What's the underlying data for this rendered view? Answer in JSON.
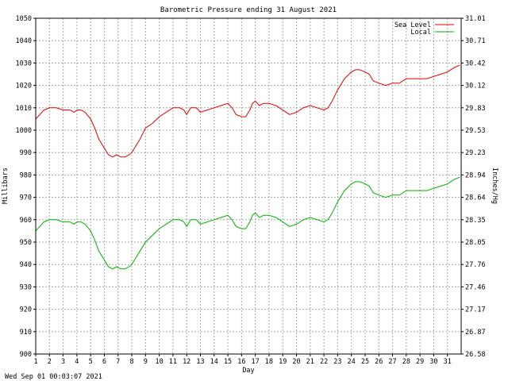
{
  "chart_data": {
    "type": "line",
    "title": "Barometric Pressure ending 31 August 2021",
    "xlabel": "Day",
    "ylabel": "Millibars",
    "y2label": "Inches/Hg",
    "timestamp": "Wed Sep 01 00:03:07 2021",
    "xlim": [
      1,
      32
    ],
    "ylim": [
      900,
      1050
    ],
    "y2lim": [
      26.58,
      31.01
    ],
    "x_ticks": [
      "1",
      "2",
      "3",
      "4",
      "5",
      "6",
      "7",
      "8",
      "9",
      "10",
      "11",
      "12",
      "13",
      "14",
      "15",
      "16",
      "17",
      "18",
      "19",
      "20",
      "21",
      "22",
      "23",
      "24",
      "25",
      "26",
      "27",
      "28",
      "29",
      "30",
      "31"
    ],
    "y_ticks": [
      "900",
      "910",
      "920",
      "930",
      "940",
      "950",
      "960",
      "970",
      "980",
      "990",
      "1000",
      "1010",
      "1020",
      "1030",
      "1040",
      "1050"
    ],
    "y2_ticks": [
      "26.58",
      "26.87",
      "27.17",
      "27.46",
      "27.76",
      "28.05",
      "28.35",
      "28.64",
      "28.94",
      "29.23",
      "29.53",
      "29.83",
      "30.12",
      "30.42",
      "30.71",
      "31.01"
    ],
    "grid": true,
    "legend_position": "top-right",
    "series": [
      {
        "name": "Sea Level",
        "color": "#e00000",
        "x": [
          1,
          1.3,
          1.6,
          2,
          2.5,
          3,
          3.5,
          3.8,
          4,
          4.3,
          4.6,
          5,
          5.3,
          5.6,
          6,
          6.3,
          6.6,
          6.9,
          7.2,
          7.5,
          7.8,
          8,
          8.3,
          8.6,
          9,
          9.5,
          10,
          10.5,
          11,
          11.5,
          11.8,
          12,
          12.3,
          12.7,
          13,
          13.5,
          14,
          14.5,
          15,
          15.3,
          15.6,
          16,
          16.3,
          16.6,
          16.8,
          17,
          17.3,
          17.6,
          18,
          18.5,
          19,
          19.5,
          20,
          20.5,
          21,
          21.5,
          22,
          22.3,
          22.6,
          23,
          23.5,
          24,
          24.3,
          24.6,
          25,
          25.3,
          25.6,
          26,
          26.5,
          27,
          27.5,
          28,
          28.5,
          29,
          29.5,
          30,
          30.5,
          31,
          31.5,
          31.9
        ],
        "values": [
          1005,
          1007,
          1009,
          1010,
          1010,
          1009,
          1009,
          1008,
          1009,
          1009,
          1008,
          1005,
          1001,
          996,
          992,
          989,
          988,
          989,
          988,
          988,
          989,
          990,
          993,
          996,
          1001,
          1003,
          1006,
          1008,
          1010,
          1010,
          1009,
          1007,
          1010,
          1010,
          1008,
          1009,
          1010,
          1011,
          1012,
          1010,
          1007,
          1006,
          1006,
          1009,
          1012,
          1013,
          1011,
          1012,
          1012,
          1011,
          1009,
          1007,
          1008,
          1010,
          1011,
          1010,
          1009,
          1010,
          1013,
          1018,
          1023,
          1026,
          1027,
          1027,
          1026,
          1025,
          1022,
          1021,
          1020,
          1021,
          1021,
          1023,
          1023,
          1023,
          1023,
          1024,
          1025,
          1026,
          1028,
          1029
        ]
      },
      {
        "name": "Local",
        "color": "#00b000",
        "x": [
          1,
          1.3,
          1.6,
          2,
          2.5,
          3,
          3.5,
          3.8,
          4,
          4.3,
          4.6,
          5,
          5.3,
          5.6,
          6,
          6.3,
          6.6,
          6.9,
          7.2,
          7.5,
          7.8,
          8,
          8.3,
          8.6,
          9,
          9.5,
          10,
          10.5,
          11,
          11.5,
          11.8,
          12,
          12.3,
          12.7,
          13,
          13.5,
          14,
          14.5,
          15,
          15.3,
          15.6,
          16,
          16.3,
          16.6,
          16.8,
          17,
          17.3,
          17.6,
          18,
          18.5,
          19,
          19.5,
          20,
          20.5,
          21,
          21.5,
          22,
          22.3,
          22.6,
          23,
          23.5,
          24,
          24.3,
          24.6,
          25,
          25.3,
          25.6,
          26,
          26.5,
          27,
          27.5,
          28,
          28.5,
          29,
          29.5,
          30,
          30.5,
          31,
          31.5,
          31.9
        ],
        "values": [
          955,
          957,
          959,
          960,
          960,
          959,
          959,
          958,
          959,
          959,
          958,
          955,
          951,
          946,
          942,
          939,
          938,
          939,
          938,
          938,
          939,
          940,
          943,
          946,
          950,
          953,
          956,
          958,
          960,
          960,
          959,
          957,
          960,
          960,
          958,
          959,
          960,
          961,
          962,
          960,
          957,
          956,
          956,
          959,
          962,
          963,
          961,
          962,
          962,
          961,
          959,
          957,
          958,
          960,
          961,
          960,
          959,
          960,
          963,
          968,
          973,
          976,
          977,
          977,
          976,
          975,
          972,
          971,
          970,
          971,
          971,
          973,
          973,
          973,
          973,
          974,
          975,
          976,
          978,
          979
        ]
      }
    ]
  }
}
